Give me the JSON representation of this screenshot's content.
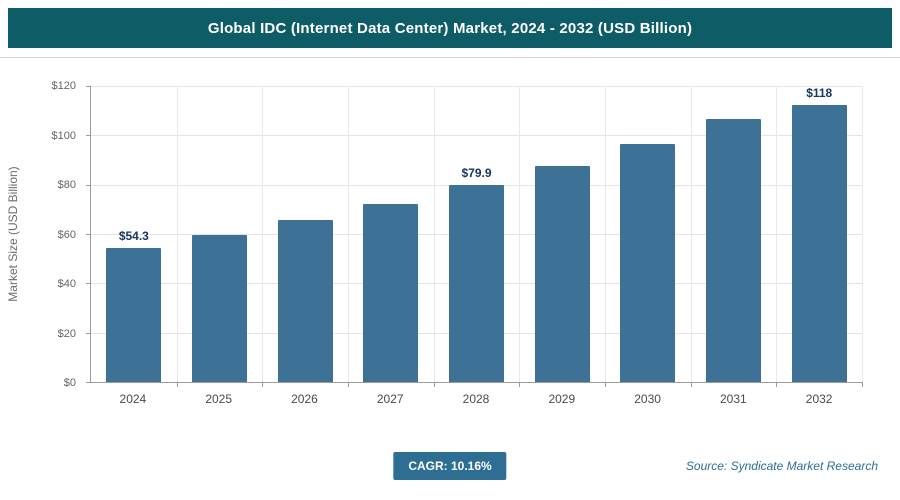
{
  "header": {
    "title": "Global IDC (Internet Data Center) Market, 2024 - 2032 (USD Billion)",
    "background_color": "#0e5c66"
  },
  "chart_data": {
    "type": "bar",
    "title": "Global IDC (Internet Data Center) Market, 2024 - 2032 (USD Billion)",
    "categories": [
      "2024",
      "2025",
      "2026",
      "2027",
      "2028",
      "2029",
      "2030",
      "2031",
      "2032"
    ],
    "values": [
      54.3,
      59.5,
      65.5,
      72,
      79.9,
      87.5,
      96.5,
      106.5,
      117.7
    ],
    "bar_labels": [
      "$54.3",
      "",
      "",
      "",
      "$79.9",
      "",
      "",
      "",
      "$118"
    ],
    "xlabel": "",
    "ylabel": "Market Size (USD Billion)",
    "ylim": [
      0,
      120
    ],
    "ytick_step": 20,
    "ytick_labels": [
      "$0",
      "$20",
      "$40",
      "$60",
      "$80",
      "$100",
      "$120"
    ],
    "grid": true,
    "legend": false,
    "bar_color": "#3d7296"
  },
  "footer": {
    "cagr_label": "CAGR: 10.16%",
    "source": "Source: Syndicate Market Research"
  },
  "colors": {
    "header_bg": "#0e5c66",
    "bar": "#3d7296",
    "badge_bg": "#2d6e92",
    "value_label": "#17355e",
    "source_text": "#2d6e92"
  }
}
